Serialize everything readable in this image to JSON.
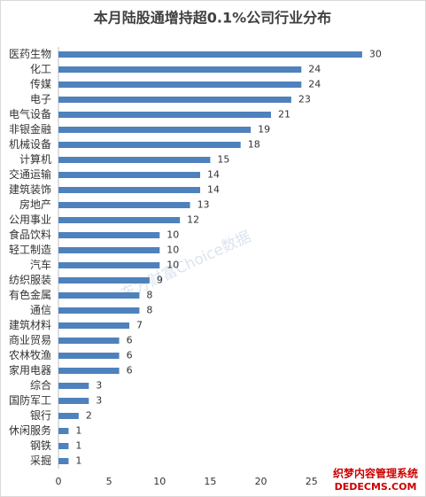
{
  "chart_data": {
    "type": "hbar",
    "title": "本月陆股通增持超0.1%公司行业分布",
    "categories": [
      "医药生物",
      "化工",
      "传媒",
      "电子",
      "电气设备",
      "非银金融",
      "机械设备",
      "计算机",
      "交通运输",
      "建筑装饰",
      "房地产",
      "公用事业",
      "食品饮料",
      "轻工制造",
      "汽车",
      "纺织服装",
      "有色金属",
      "通信",
      "建筑材料",
      "商业贸易",
      "农林牧渔",
      "家用电器",
      "综合",
      "国防军工",
      "银行",
      "休闲服务",
      "钢铁",
      "采掘"
    ],
    "values": [
      30,
      24,
      24,
      23,
      21,
      19,
      18,
      15,
      14,
      14,
      13,
      12,
      10,
      10,
      10,
      9,
      8,
      8,
      7,
      6,
      6,
      6,
      3,
      3,
      2,
      1,
      1,
      1
    ],
    "color": "#4f81bd",
    "xlim": [
      0,
      35
    ],
    "xticks": [
      0,
      5,
      10,
      15,
      20,
      25
    ],
    "annotations": [
      "东方财富Choice数据",
      "织梦内容管理系统",
      "DEDECMS.COM"
    ]
  }
}
